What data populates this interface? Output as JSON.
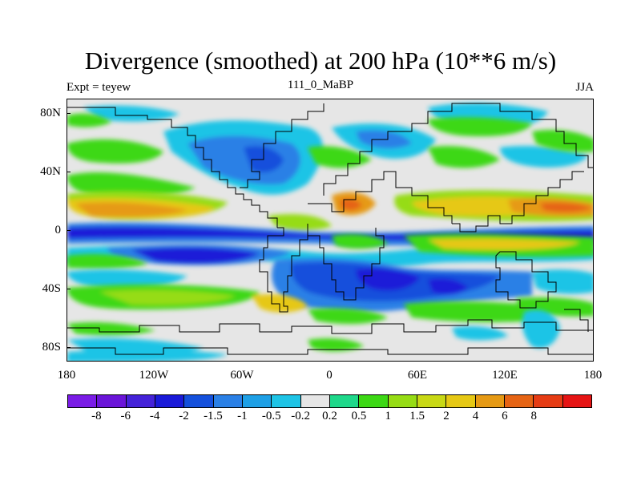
{
  "title": "Divergence (smoothed) at 200 hPa (10**6 m/s)",
  "subtitle_left": "Expt = teyew",
  "subtitle_center": "111_0_MaBP",
  "subtitle_right": "JJA",
  "y_axis": {
    "labels": [
      "80N",
      "40N",
      "0",
      "40S",
      "80S"
    ],
    "values": [
      80,
      40,
      0,
      -40,
      -80
    ]
  },
  "x_axis": {
    "labels": [
      "180",
      "120W",
      "60W",
      "0",
      "60E",
      "120E",
      "180"
    ],
    "values": [
      -180,
      -120,
      -60,
      0,
      60,
      120,
      180
    ]
  },
  "colorbar": {
    "colors": [
      "#7a1ce6",
      "#6a14d8",
      "#4422d8",
      "#1a1ad8",
      "#1450dc",
      "#2a80e6",
      "#1ea0e6",
      "#1ec4e6",
      "#e6e6e6",
      "#1ed88a",
      "#3cd814",
      "#96dc14",
      "#c8d814",
      "#e6c814",
      "#e69a14",
      "#e66414",
      "#e63c14",
      "#e61414"
    ],
    "labels": [
      "-8",
      "-6",
      "-4",
      "-2",
      "-1.5",
      "-1",
      "-0.5",
      "-0.2",
      "0.2",
      "0.5",
      "1",
      "1.5",
      "2",
      "4",
      "6",
      "8"
    ]
  },
  "chart_data": {
    "type": "heatmap",
    "title": "Divergence (smoothed) at 200 hPa (10**6 m/s)",
    "units": "10**6 m/s",
    "level": "200 hPa",
    "season": "JJA",
    "experiment": "teyew",
    "period": "111_0_MaBP",
    "xlim": [
      -180,
      180
    ],
    "ylim": [
      -90,
      90
    ],
    "contour_levels": [
      -8,
      -6,
      -4,
      -2,
      -1.5,
      -1,
      -0.5,
      -0.2,
      0.2,
      0.5,
      1,
      1.5,
      2,
      4,
      6,
      8
    ]
  }
}
